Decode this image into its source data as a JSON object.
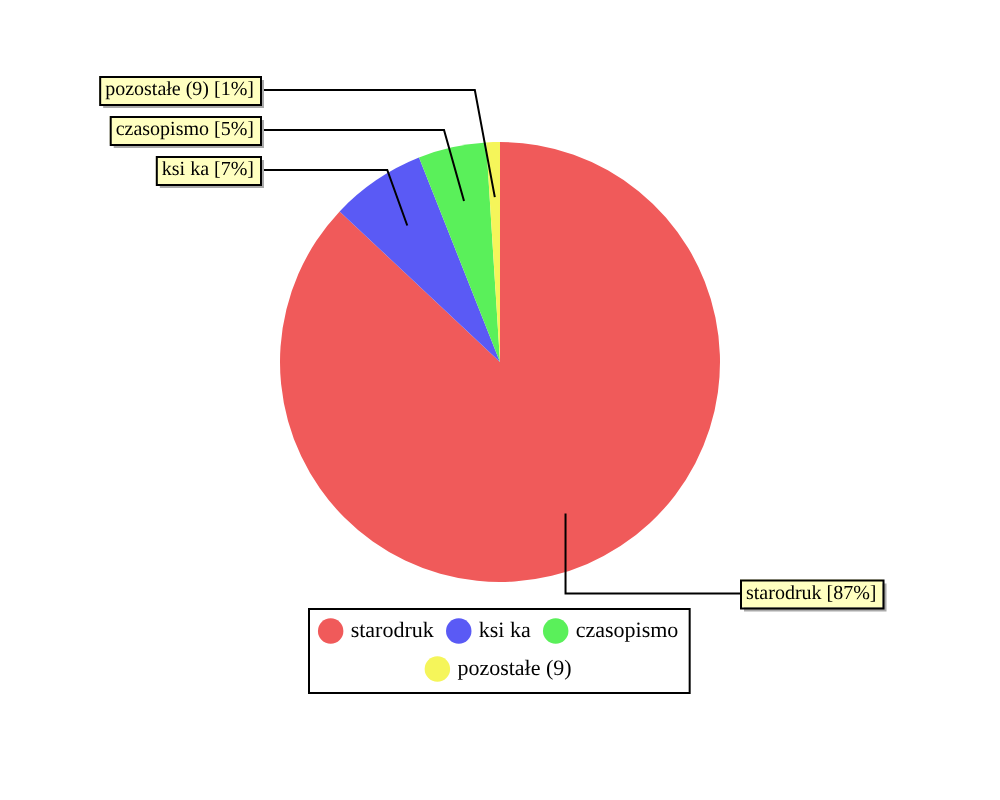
{
  "chart_data": {
    "type": "pie",
    "categories": [
      "starodruk",
      "ksi ka",
      "czasopismo",
      "pozostałe (9)"
    ],
    "values": [
      87,
      7,
      5,
      1
    ],
    "colors": [
      "#f05a5a",
      "#5a5af5",
      "#5af05a",
      "#f5f55a"
    ],
    "value_labels": [
      "starodruk [87%]",
      "ksi ka [7%]",
      "czasopismo [5%]",
      "pozostałe (9) [1%]"
    ],
    "legend": "bottom"
  }
}
